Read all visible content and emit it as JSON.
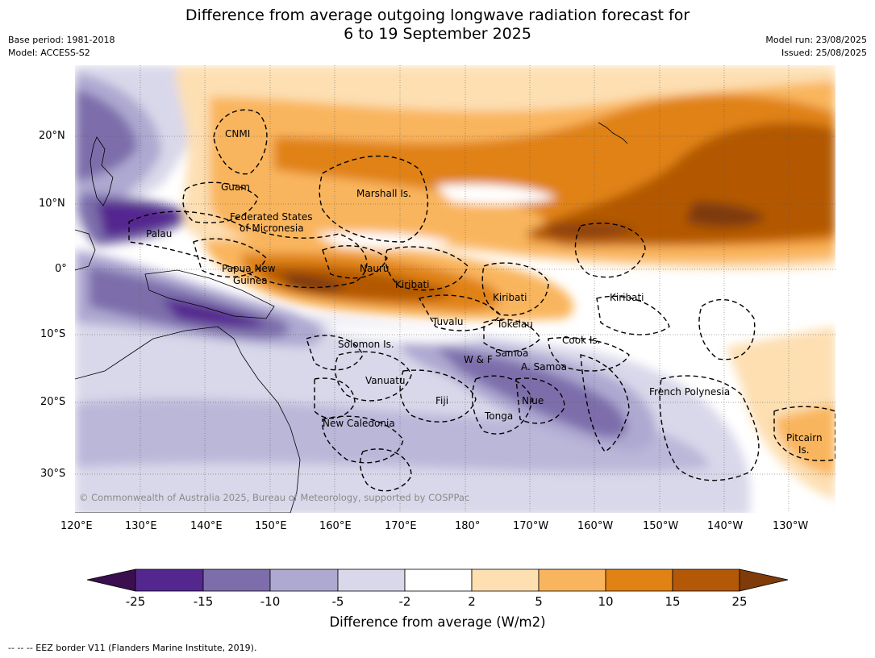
{
  "title_line1": "Difference from average outgoing longwave radiation forecast for",
  "title_line2": "6 to 19 September 2025",
  "meta_left": {
    "base_period": "Base period: 1981-2018",
    "model": "Model: ACCESS-S2"
  },
  "meta_right": {
    "model_run": "Model run: 23/08/2025",
    "issued": "Issued: 25/08/2025"
  },
  "lon_labels": [
    "120°E",
    "130°E",
    "140°E",
    "150°E",
    "160°E",
    "170°E",
    "180°",
    "170°W",
    "160°W",
    "150°W",
    "140°W",
    "130°W"
  ],
  "lat_labels": [
    "20°N",
    "10°N",
    "0°",
    "10°S",
    "20°S",
    "30°S"
  ],
  "places": {
    "cnmi": "CNMI",
    "guam": "Guam",
    "marshall": "Marshall Is.",
    "fsm1": "Federated States",
    "fsm2": "of Micronesia",
    "palau": "Palau",
    "png1": "Papua New",
    "png2": "Guinea",
    "nauru": "Nauru",
    "kiribati1": "Kiribati",
    "kiribati2": "Kiribati",
    "kiribati3": "Kiribati",
    "tuvalu": "Tuvalu",
    "tokelau": "Tokelau",
    "cook": "Cook Is.",
    "solomon": "Solomon Is.",
    "samoa": "Samoa",
    "wf": "W & F",
    "asamoa": "A. Samoa",
    "vanuatu": "Vanuatu",
    "fiji": "Fiji",
    "niue": "Niue",
    "tonga": "Tonga",
    "newcal": "New Caledonia",
    "frpoly": "French Polynesia",
    "pitcairn1": "Pitcairn",
    "pitcairn2": "Is."
  },
  "copyright": "© Commonwealth of Australia 2025, Bureau of Meteorology, supported by COSPPac",
  "colorbar": {
    "title": "Difference from average (W/m2)",
    "ticks": [
      "-25",
      "-15",
      "-10",
      "-5",
      "-2",
      "2",
      "5",
      "10",
      "15",
      "25"
    ],
    "colors": [
      "#3b0f4f",
      "#54278f",
      "#7d6eab",
      "#aea9d1",
      "#d9d8ea",
      "#ffffff",
      "#fddfb2",
      "#f9b55d",
      "#e08214",
      "#b35806",
      "#7f3b08"
    ]
  },
  "footer": "--  --  -- EEZ border V11 (Flanders Marine Institute, 2019)."
}
